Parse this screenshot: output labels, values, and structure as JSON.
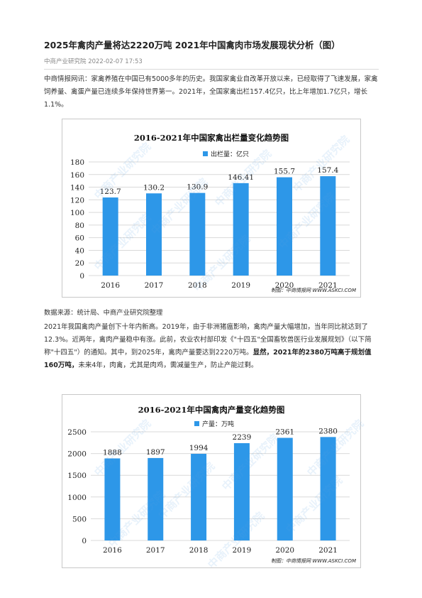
{
  "article": {
    "title": "2025年禽肉产量将达2220万吨 2021年中国禽肉市场发展现状分析（图）",
    "meta": "中商产业研究院 2022-02-07 17:53",
    "para1": "中商情报网讯：家禽养殖在中国已有5000多年的历史。我国家禽业自改革开放以来，已经取得了飞速发展，家禽饲养量、禽蛋产量已连续多年保持世界第一。2021年，全国家禽出栏157.4亿只，比上年增加1.7亿只，增长1.1%。",
    "source": "数据来源：统计局、中商产业研究院整理",
    "para2_normal": "2021年我国禽肉产量创下十年内新高。2019年，由于非洲猪瘟影响，禽肉产量大幅增加，当年同比就达到了12.3%。近两年，禽肉产量稳中有涨。此前，农业农村部印发《\"十四五\"全国畜牧兽医行业发展规划》（以下简称\"十四五\"）的通知。其中，到2025年，禽肉产量要达到2220万吨。",
    "para2_bold": "显然，2021年的2380万吨高于规划值160万吨，",
    "para2_tail": "未来4年，肉禽，尤其是肉鸡，需减量生产，防止产能过剩。"
  },
  "watermark": "中商产业研究院",
  "chart_data": [
    {
      "type": "bar",
      "title": "2016-2021年中国家禽出栏量变化趋势图",
      "categories": [
        "2016",
        "2017",
        "2018",
        "2019",
        "2020",
        "2021"
      ],
      "series": [
        {
          "name": "出栏量：亿只",
          "values": [
            123.7,
            130.2,
            130.9,
            146.41,
            155.7,
            157.4
          ]
        }
      ],
      "value_labels": [
        "123.7",
        "130.2",
        "130.9",
        "146.41",
        "155.7",
        "157.4"
      ],
      "ylim": [
        0,
        180
      ],
      "yticks": [
        "0",
        "20",
        "40",
        "60",
        "80",
        "100",
        "120",
        "140",
        "160",
        "180"
      ],
      "grid": true,
      "legend": "top",
      "color": "#2d97e8",
      "credit": "制图：中商情报网 WWW.ASKCI.COM"
    },
    {
      "type": "bar",
      "title": "2016-2021年中国禽肉产量变化趋势图",
      "categories": [
        "2016",
        "2017",
        "2018",
        "2019",
        "2020",
        "2021"
      ],
      "series": [
        {
          "name": "产量：万吨",
          "values": [
            1888,
            1897,
            1994,
            2239,
            2361,
            2380
          ]
        }
      ],
      "value_labels": [
        "1888",
        "1897",
        "1994",
        "2239",
        "2361",
        "2380"
      ],
      "ylim": [
        0,
        2500
      ],
      "yticks": [
        "0",
        "500",
        "1000",
        "1500",
        "2000",
        "2500"
      ],
      "grid": true,
      "legend": "top",
      "color": "#2d97e8",
      "credit": "制图：中商情报网 WWW.ASKCI.COM"
    }
  ]
}
